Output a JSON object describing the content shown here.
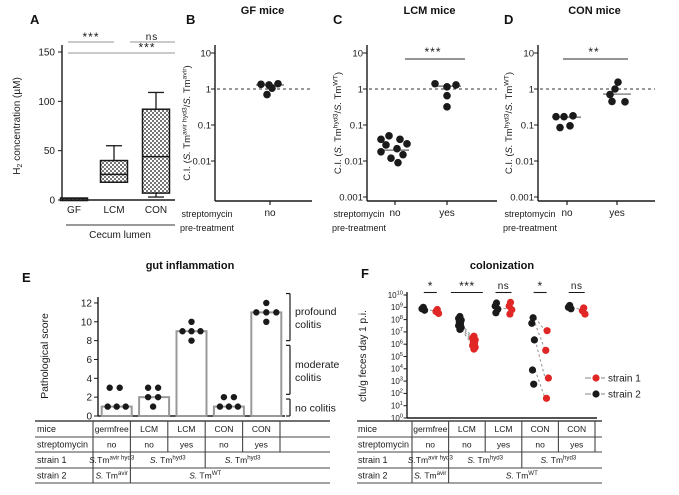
{
  "colors": {
    "black": "#1a1a1a",
    "red": "#e12726",
    "gray": "#999999"
  },
  "chart_data": [
    {
      "id": "A",
      "letter": "A",
      "type": "box",
      "title": "",
      "ylabel_segs": [
        {
          "t": "H"
        },
        {
          "t": "2",
          "s": "sub"
        },
        {
          "t": " concentration (µM)"
        }
      ],
      "xlabel": "Cecum lumen",
      "categories": [
        "GF",
        "LCM",
        "CON"
      ],
      "ylim": [
        0,
        150
      ],
      "yticks": [
        0,
        50,
        100,
        150
      ],
      "boxes": [
        {
          "min": 0,
          "q1": 0,
          "median": 1,
          "q3": 2,
          "max": 2
        },
        {
          "min": 18,
          "q1": 18,
          "median": 26,
          "q3": 40,
          "max": 55
        },
        {
          "min": 3,
          "q1": 7,
          "median": 44,
          "q3": 92,
          "max": 109
        }
      ],
      "significance": [
        {
          "label": "***",
          "between": [
            "GF",
            "LCM"
          ]
        },
        {
          "label": "ns",
          "between": [
            "LCM",
            "CON"
          ]
        },
        {
          "label": "***",
          "between": [
            "GF",
            "CON"
          ]
        }
      ]
    },
    {
      "id": "B",
      "letter": "B",
      "type": "scatter",
      "title": "GF mice",
      "ylabel_segs": [
        {
          "t": "C.I. ("
        },
        {
          "t": "S.",
          "s": "i"
        },
        {
          "t": " Tm"
        },
        {
          "t": "avir hyd3",
          "s": "sup"
        },
        {
          "t": "/"
        },
        {
          "t": "S.",
          "s": "i"
        },
        {
          "t": " Tm"
        },
        {
          "t": "avir",
          "s": "sup"
        },
        {
          "t": ")"
        }
      ],
      "xlabel_lines": [
        "streptomycin",
        "pre-treatment"
      ],
      "log_scale": true,
      "ref_line": 1,
      "yticks": [
        {
          "label": "10",
          "exp": 1
        },
        {
          "label": "1",
          "exp": 0
        },
        {
          "label": "0.1",
          "exp": -1
        },
        {
          "label": "0.01",
          "exp": -2
        }
      ],
      "groups": [
        {
          "x": "no",
          "median": 1.3,
          "points": [
            1.35,
            1.3,
            1.4,
            1.05,
            0.7
          ]
        }
      ],
      "significance": []
    },
    {
      "id": "C",
      "letter": "C",
      "type": "scatter",
      "title": "LCM mice",
      "ylabel_segs": [
        {
          "t": "C.I. ("
        },
        {
          "t": "S.",
          "s": "i"
        },
        {
          "t": " Tm"
        },
        {
          "t": "hyd3",
          "s": "sup"
        },
        {
          "t": "/"
        },
        {
          "t": "S.",
          "s": "i"
        },
        {
          "t": " Tm"
        },
        {
          "t": "WT",
          "s": "sup"
        },
        {
          "t": ")"
        }
      ],
      "xlabel_lines": [
        "streptomycin",
        "pre-treatment"
      ],
      "log_scale": true,
      "ref_line": 1,
      "yticks": [
        {
          "label": "10",
          "exp": 1
        },
        {
          "label": "1",
          "exp": 0
        },
        {
          "label": "0.1",
          "exp": -1
        },
        {
          "label": "0.01",
          "exp": -2
        },
        {
          "label": "0.001",
          "exp": -3
        }
      ],
      "groups": [
        {
          "x": "no",
          "median": 0.02,
          "points": [
            0.05,
            0.04,
            0.04,
            0.03,
            0.028,
            0.022,
            0.018,
            0.015,
            0.012,
            0.009
          ]
        },
        {
          "x": "yes",
          "median": 1.2,
          "points": [
            1.4,
            1.3,
            1.15,
            0.65,
            0.32
          ]
        }
      ],
      "significance": [
        {
          "label": "***",
          "between": [
            "no",
            "yes"
          ]
        }
      ]
    },
    {
      "id": "D",
      "letter": "D",
      "type": "scatter",
      "title": "CON mice",
      "ylabel_segs": [
        {
          "t": "C.I. ("
        },
        {
          "t": "S.",
          "s": "i"
        },
        {
          "t": " Tm"
        },
        {
          "t": "hyd3",
          "s": "sup"
        },
        {
          "t": "/"
        },
        {
          "t": "S.",
          "s": "i"
        },
        {
          "t": " Tm"
        },
        {
          "t": "WT",
          "s": "sup"
        },
        {
          "t": ")"
        }
      ],
      "xlabel_lines": [
        "streptomycin",
        "pre-treatment"
      ],
      "log_scale": true,
      "ref_line": 1,
      "yticks": [
        {
          "label": "10",
          "exp": 1
        },
        {
          "label": "1",
          "exp": 0
        },
        {
          "label": "0.1",
          "exp": -1
        },
        {
          "label": "0.01",
          "exp": -2
        },
        {
          "label": "0.001",
          "exp": -3
        }
      ],
      "groups": [
        {
          "x": "no",
          "median": 0.165,
          "points": [
            0.17,
            0.17,
            0.18,
            0.085,
            0.095
          ]
        },
        {
          "x": "yes",
          "median": 0.72,
          "points": [
            1.55,
            1.0,
            0.7,
            0.45,
            0.44
          ]
        }
      ],
      "significance": [
        {
          "label": "**",
          "between": [
            "no",
            "yes"
          ]
        }
      ]
    },
    {
      "id": "E",
      "letter": "E",
      "type": "bar",
      "title": "gut inflammation",
      "ylabel": "Pathological score",
      "ylim": [
        0,
        12
      ],
      "yticks": [
        0,
        2,
        4,
        6,
        8,
        10,
        12
      ],
      "categories": [
        "germfree",
        "LCM",
        "LCM",
        "CON",
        "CON"
      ],
      "bar_values": [
        1,
        2,
        9,
        1,
        11
      ],
      "dot_values": [
        [
          3,
          3,
          1,
          1,
          1
        ],
        [
          3,
          3,
          2,
          2,
          1
        ],
        [
          10,
          9,
          9,
          9,
          8
        ],
        [
          2,
          2,
          1,
          1,
          1
        ],
        [
          12,
          11,
          11,
          11,
          10
        ]
      ],
      "brackets": [
        {
          "lines": [
            "profound",
            "colitis"
          ],
          "from": 8,
          "to": 13
        },
        {
          "lines": [
            "moderate",
            "colitis"
          ],
          "from": 2.3,
          "to": 7.5
        },
        {
          "lines": [
            "no colitis"
          ],
          "from": 0,
          "to": 1.8
        }
      ],
      "table": {
        "row_labels": [
          "mice",
          "streptomycin",
          "strain 1",
          "strain 2"
        ],
        "rows": [
          [
            {
              "span": 1,
              "segs": [
                {
                  "t": "germfree"
                }
              ]
            },
            {
              "span": 1,
              "segs": [
                {
                  "t": "LCM"
                }
              ]
            },
            {
              "span": 1,
              "segs": [
                {
                  "t": "LCM"
                }
              ]
            },
            {
              "span": 1,
              "segs": [
                {
                  "t": "CON"
                }
              ]
            },
            {
              "span": 1,
              "segs": [
                {
                  "t": "CON"
                }
              ]
            }
          ],
          [
            {
              "span": 1,
              "segs": [
                {
                  "t": "no"
                }
              ]
            },
            {
              "span": 1,
              "segs": [
                {
                  "t": "no"
                }
              ]
            },
            {
              "span": 1,
              "segs": [
                {
                  "t": "yes"
                }
              ]
            },
            {
              "span": 1,
              "segs": [
                {
                  "t": "no"
                }
              ]
            },
            {
              "span": 1,
              "segs": [
                {
                  "t": "yes"
                }
              ]
            }
          ],
          [
            {
              "span": 1,
              "segs": [
                {
                  "t": "S.",
                  "s": "i"
                },
                {
                  "t": "Tm"
                },
                {
                  "t": "avir hyd3",
                  "s": "sup"
                }
              ]
            },
            {
              "span": 2,
              "segs": [
                {
                  "t": "S.",
                  "s": "i"
                },
                {
                  "t": " Tm"
                },
                {
                  "t": "hyd3",
                  "s": "sup"
                }
              ]
            },
            {
              "span": 2,
              "segs": [
                {
                  "t": "S.",
                  "s": "i"
                },
                {
                  "t": " Tm"
                },
                {
                  "t": "hyd3",
                  "s": "sup"
                }
              ]
            }
          ],
          [
            {
              "span": 1,
              "segs": [
                {
                  "t": "S.",
                  "s": "i"
                },
                {
                  "t": " Tm"
                },
                {
                  "t": "avir",
                  "s": "sup"
                }
              ]
            },
            {
              "span": 4,
              "segs": [
                {
                  "t": "S.",
                  "s": "i"
                },
                {
                  "t": " Tm"
                },
                {
                  "t": "WT",
                  "s": "sup"
                }
              ]
            }
          ]
        ]
      }
    },
    {
      "id": "F",
      "letter": "F",
      "type": "scatter",
      "title": "colonization",
      "ylabel": "cfu/g feces day 1 p.i.",
      "log_scale": true,
      "ymin_exp": 0,
      "ymax_exp": 10,
      "legend": [
        {
          "label": "strain 1",
          "color": "#e12726"
        },
        {
          "label": "strain 2",
          "color": "#1a1a1a"
        }
      ],
      "groups": [
        {
          "sig": "*",
          "black": [
            9.0,
            8.88,
            8.76
          ],
          "red": [
            8.82,
            8.66,
            8.5
          ],
          "links": [
            [
              8.88,
              8.66
            ]
          ]
        },
        {
          "sig": "***",
          "black": [
            8.25,
            8.1,
            7.95,
            7.8,
            7.65,
            7.5,
            7.35,
            7.2
          ],
          "red": [
            6.65,
            6.5,
            6.35,
            6.2,
            6.05,
            5.9,
            5.75,
            5.6
          ],
          "links": [
            [
              7.6,
              6.6
            ],
            [
              7.45,
              6.4
            ],
            [
              7.3,
              6.2
            ],
            [
              7.15,
              6.0
            ]
          ]
        },
        {
          "sig": "ns",
          "black": [
            9.35,
            9.1,
            8.85,
            8.55
          ],
          "red": [
            9.4,
            9.1,
            8.8,
            8.45
          ],
          "links": [
            [
              8.9,
              8.9
            ]
          ]
        },
        {
          "sig": "*",
          "black": [
            8.15,
            7.7,
            6.35,
            3.9,
            2.75
          ],
          "red": [
            7.1,
            5.5,
            3.25,
            1.6
          ],
          "links": [
            [
              8.15,
              7.1
            ],
            [
              7.7,
              5.5
            ],
            [
              6.35,
              3.25
            ],
            [
              3.9,
              1.6
            ]
          ]
        },
        {
          "sig": "ns",
          "black": [
            9.15,
            9.0,
            8.88
          ],
          "red": [
            8.95,
            8.72,
            8.45
          ],
          "links": [
            [
              9.0,
              8.8
            ]
          ]
        }
      ],
      "table": {
        "row_labels": [
          "mice",
          "streptomycin",
          "strain 1",
          "strain 2"
        ],
        "rows": [
          [
            {
              "span": 1,
              "segs": [
                {
                  "t": "germfree"
                }
              ]
            },
            {
              "span": 1,
              "segs": [
                {
                  "t": "LCM"
                }
              ]
            },
            {
              "span": 1,
              "segs": [
                {
                  "t": "LCM"
                }
              ]
            },
            {
              "span": 1,
              "segs": [
                {
                  "t": "CON"
                }
              ]
            },
            {
              "span": 1,
              "segs": [
                {
                  "t": "CON"
                }
              ]
            }
          ],
          [
            {
              "span": 1,
              "segs": [
                {
                  "t": "no"
                }
              ]
            },
            {
              "span": 1,
              "segs": [
                {
                  "t": "no"
                }
              ]
            },
            {
              "span": 1,
              "segs": [
                {
                  "t": "yes"
                }
              ]
            },
            {
              "span": 1,
              "segs": [
                {
                  "t": "no"
                }
              ]
            },
            {
              "span": 1,
              "segs": [
                {
                  "t": "yes"
                }
              ]
            }
          ],
          [
            {
              "span": 1,
              "segs": [
                {
                  "t": "S.",
                  "s": "i"
                },
                {
                  "t": "Tm"
                },
                {
                  "t": "avir hyd3",
                  "s": "sup"
                }
              ]
            },
            {
              "span": 2,
              "segs": [
                {
                  "t": "S.",
                  "s": "i"
                },
                {
                  "t": " Tm"
                },
                {
                  "t": "hyd3",
                  "s": "sup"
                }
              ]
            },
            {
              "span": 2,
              "segs": [
                {
                  "t": "S.",
                  "s": "i"
                },
                {
                  "t": " Tm"
                },
                {
                  "t": "hyd3",
                  "s": "sup"
                }
              ]
            }
          ],
          [
            {
              "span": 1,
              "segs": [
                {
                  "t": "S.",
                  "s": "i"
                },
                {
                  "t": " Tm"
                },
                {
                  "t": "avir",
                  "s": "sup"
                }
              ]
            },
            {
              "span": 4,
              "segs": [
                {
                  "t": "S.",
                  "s": "i"
                },
                {
                  "t": " Tm"
                },
                {
                  "t": "WT",
                  "s": "sup"
                }
              ]
            }
          ]
        ]
      }
    }
  ]
}
